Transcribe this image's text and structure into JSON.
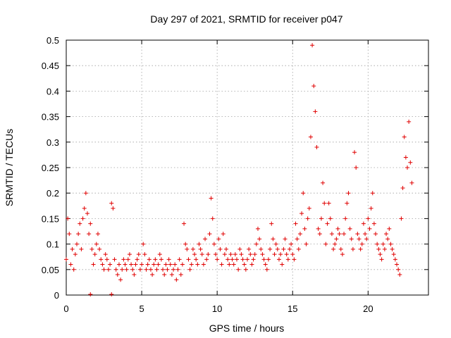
{
  "chart_data": {
    "type": "scatter",
    "title": "Day 297 of 2021, SRMTID for receiver p047",
    "xlabel": "GPS time / hours",
    "ylabel": "SRMTID / TECUs",
    "xlim": [
      0,
      24
    ],
    "ylim": [
      0,
      0.5
    ],
    "x_ticks": [
      0,
      5,
      10,
      15,
      20
    ],
    "x_tick_labels": [
      "0",
      "5",
      "10",
      "15",
      "20"
    ],
    "y_ticks": [
      0,
      0.05,
      0.1,
      0.15,
      0.2,
      0.25,
      0.3,
      0.35,
      0.4,
      0.45,
      0.5
    ],
    "y_tick_labels": [
      "0",
      "0.05",
      "0.1",
      "0.15",
      "0.2",
      "0.25",
      "0.3",
      "0.35",
      "0.4",
      "0.45",
      "0.5"
    ],
    "grid": true,
    "marker": "+",
    "color": "#e00000",
    "series": [
      {
        "name": "SRMTID",
        "x": [
          0.0,
          0.1,
          0.2,
          0.3,
          0.4,
          0.5,
          0.6,
          0.7,
          0.8,
          0.9,
          1.0,
          1.1,
          1.2,
          1.3,
          1.4,
          1.5,
          1.6,
          1.7,
          1.8,
          1.9,
          2.0,
          2.1,
          2.2,
          2.3,
          2.4,
          2.5,
          2.6,
          2.7,
          2.8,
          2.9,
          3.0,
          3.1,
          3.2,
          3.3,
          3.4,
          3.5,
          3.6,
          3.7,
          3.8,
          3.9,
          4.0,
          4.1,
          4.2,
          4.3,
          4.4,
          4.5,
          4.6,
          4.7,
          4.8,
          4.9,
          5.0,
          5.1,
          5.2,
          5.3,
          5.4,
          5.5,
          5.6,
          5.7,
          5.8,
          5.9,
          6.0,
          6.1,
          6.2,
          6.3,
          6.4,
          6.5,
          6.6,
          6.7,
          6.8,
          6.9,
          7.0,
          7.1,
          7.2,
          7.3,
          7.4,
          7.5,
          7.6,
          7.7,
          7.8,
          7.9,
          8.0,
          8.1,
          8.2,
          8.3,
          8.4,
          8.5,
          8.6,
          8.7,
          8.8,
          8.9,
          9.0,
          9.1,
          9.2,
          9.3,
          9.4,
          9.5,
          9.6,
          9.7,
          9.8,
          9.9,
          10.0,
          10.1,
          10.2,
          10.3,
          10.4,
          10.5,
          10.6,
          10.7,
          10.8,
          10.9,
          11.0,
          11.1,
          11.2,
          11.3,
          11.4,
          11.5,
          11.6,
          11.7,
          11.8,
          11.9,
          12.0,
          12.1,
          12.2,
          12.3,
          12.4,
          12.5,
          12.6,
          12.7,
          12.8,
          12.9,
          13.0,
          13.1,
          13.2,
          13.3,
          13.4,
          13.5,
          13.6,
          13.7,
          13.8,
          13.9,
          14.0,
          14.1,
          14.2,
          14.3,
          14.4,
          14.5,
          14.6,
          14.7,
          14.8,
          14.9,
          15.0,
          15.1,
          15.2,
          15.3,
          15.4,
          15.5,
          15.6,
          15.7,
          15.8,
          15.9,
          16.0,
          16.1,
          16.2,
          16.3,
          16.4,
          16.5,
          16.6,
          16.7,
          16.8,
          16.9,
          17.0,
          17.1,
          17.2,
          17.3,
          17.4,
          17.5,
          17.6,
          17.7,
          17.8,
          17.9,
          18.0,
          18.1,
          18.2,
          18.3,
          18.4,
          18.5,
          18.6,
          18.7,
          18.8,
          18.9,
          19.0,
          19.1,
          19.2,
          19.3,
          19.4,
          19.5,
          19.6,
          19.7,
          19.8,
          19.9,
          20.0,
          20.1,
          20.2,
          20.3,
          20.4,
          20.5,
          20.6,
          20.7,
          20.8,
          20.9,
          21.0,
          21.1,
          21.2,
          21.3,
          21.4,
          21.5,
          21.6,
          21.7,
          21.8,
          21.9,
          22.0,
          22.1,
          22.2,
          22.3,
          22.4,
          22.5,
          22.6,
          22.7,
          22.8,
          22.9
        ],
        "values": [
          0.07,
          0.15,
          0.12,
          0.06,
          0.09,
          0.05,
          0.08,
          0.1,
          0.12,
          0.14,
          0.09,
          0.15,
          0.17,
          0.2,
          0.16,
          0.12,
          0.14,
          0.09,
          0.06,
          0.08,
          0.1,
          0.12,
          0.09,
          0.07,
          0.06,
          0.05,
          0.08,
          0.07,
          0.05,
          0.06,
          0.18,
          0.17,
          0.07,
          0.05,
          0.04,
          0.06,
          0.03,
          0.05,
          0.07,
          0.06,
          0.05,
          0.07,
          0.08,
          0.06,
          0.05,
          0.04,
          0.06,
          0.07,
          0.08,
          0.05,
          0.06,
          0.1,
          0.08,
          0.05,
          0.06,
          0.07,
          0.05,
          0.04,
          0.06,
          0.07,
          0.05,
          0.06,
          0.08,
          0.07,
          0.05,
          0.04,
          0.06,
          0.05,
          0.07,
          0.06,
          0.04,
          0.05,
          0.06,
          0.03,
          0.05,
          0.07,
          0.04,
          0.06,
          0.14,
          0.1,
          0.09,
          0.07,
          0.05,
          0.06,
          0.09,
          0.08,
          0.07,
          0.06,
          0.1,
          0.09,
          0.08,
          0.06,
          0.11,
          0.07,
          0.08,
          0.12,
          0.19,
          0.15,
          0.1,
          0.08,
          0.07,
          0.11,
          0.09,
          0.06,
          0.12,
          0.08,
          0.09,
          0.07,
          0.06,
          0.08,
          0.07,
          0.06,
          0.08,
          0.07,
          0.05,
          0.09,
          0.08,
          0.07,
          0.06,
          0.05,
          0.07,
          0.09,
          0.08,
          0.06,
          0.07,
          0.08,
          0.1,
          0.13,
          0.11,
          0.09,
          0.08,
          0.07,
          0.06,
          0.05,
          0.07,
          0.09,
          0.14,
          0.11,
          0.08,
          0.1,
          0.09,
          0.07,
          0.08,
          0.06,
          0.09,
          0.11,
          0.08,
          0.07,
          0.09,
          0.1,
          0.08,
          0.07,
          0.14,
          0.11,
          0.09,
          0.12,
          0.16,
          0.2,
          0.13,
          0.1,
          0.15,
          0.17,
          0.31,
          0.49,
          0.41,
          0.36,
          0.29,
          0.13,
          0.12,
          0.15,
          0.22,
          0.18,
          0.1,
          0.14,
          0.18,
          0.15,
          0.12,
          0.09,
          0.1,
          0.11,
          0.13,
          0.12,
          0.09,
          0.08,
          0.12,
          0.15,
          0.18,
          0.2,
          0.13,
          0.11,
          0.09,
          0.28,
          0.25,
          0.12,
          0.11,
          0.09,
          0.1,
          0.14,
          0.12,
          0.11,
          0.15,
          0.13,
          0.17,
          0.2,
          0.14,
          0.12,
          0.1,
          0.09,
          0.08,
          0.07,
          0.1,
          0.09,
          0.12,
          0.11,
          0.13,
          0.1,
          0.09,
          0.08,
          0.07,
          0.06,
          0.05,
          0.04,
          0.15,
          0.21,
          0.31,
          0.27,
          0.25,
          0.34,
          0.26,
          0.22
        ],
        "zero_markers_x": [
          1.6,
          3.0
        ]
      }
    ]
  }
}
